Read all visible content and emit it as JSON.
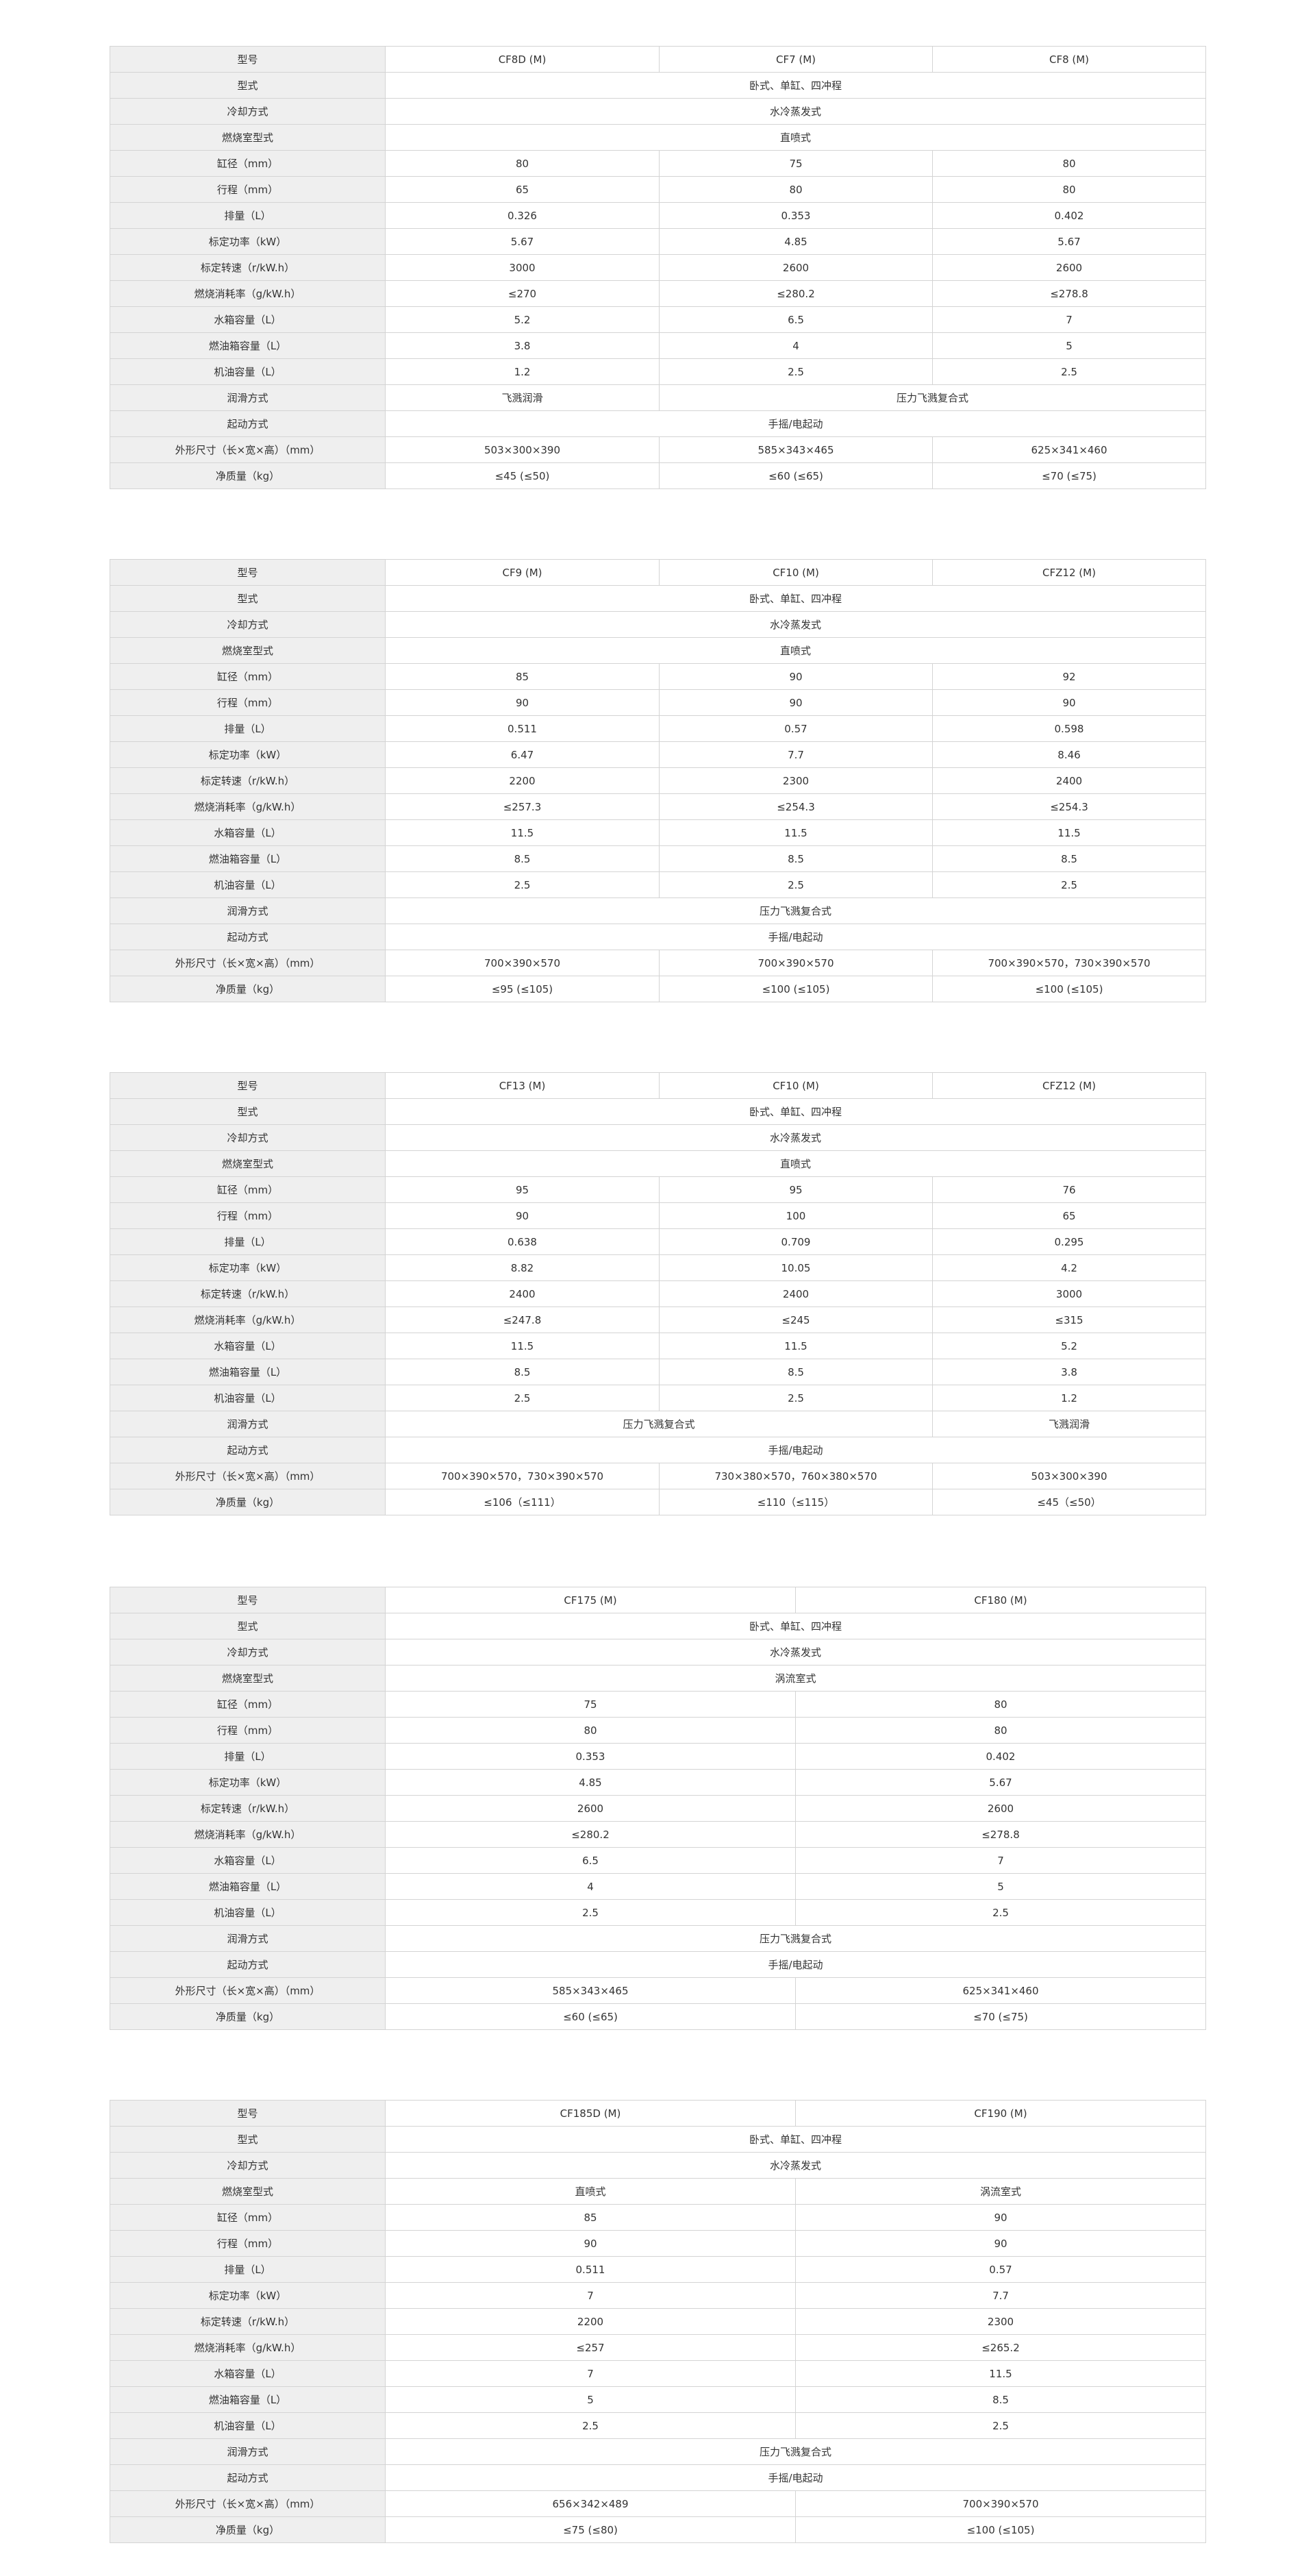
{
  "tables": [
    {
      "columns": 3,
      "rows": [
        {
          "label": "型号",
          "cells": [
            [
              "CF8D (M)",
              1
            ],
            [
              "CF7 (M)",
              1
            ],
            [
              "CF8 (M)",
              1
            ]
          ]
        },
        {
          "label": "型式",
          "cells": [
            [
              "卧式、单缸、四冲程",
              3
            ]
          ]
        },
        {
          "label": "冷却方式",
          "cells": [
            [
              "水冷蒸发式",
              3
            ]
          ]
        },
        {
          "label": "燃烧室型式",
          "cells": [
            [
              "直喷式",
              3
            ]
          ]
        },
        {
          "label": "缸径（mm）",
          "cells": [
            [
              "80",
              1
            ],
            [
              "75",
              1
            ],
            [
              "80",
              1
            ]
          ]
        },
        {
          "label": "行程（mm）",
          "cells": [
            [
              "65",
              1
            ],
            [
              "80",
              1
            ],
            [
              "80",
              1
            ]
          ]
        },
        {
          "label": "排量（L）",
          "cells": [
            [
              "0.326",
              1
            ],
            [
              "0.353",
              1
            ],
            [
              "0.402",
              1
            ]
          ]
        },
        {
          "label": "标定功率（kW）",
          "cells": [
            [
              "5.67",
              1
            ],
            [
              "4.85",
              1
            ],
            [
              "5.67",
              1
            ]
          ]
        },
        {
          "label": "标定转速（r/kW.h）",
          "cells": [
            [
              "3000",
              1
            ],
            [
              "2600",
              1
            ],
            [
              "2600",
              1
            ]
          ]
        },
        {
          "label": "燃烧消耗率（g/kW.h）",
          "cells": [
            [
              "≤270",
              1
            ],
            [
              "≤280.2",
              1
            ],
            [
              "≤278.8",
              1
            ]
          ]
        },
        {
          "label": "水箱容量（L）",
          "cells": [
            [
              "5.2",
              1
            ],
            [
              "6.5",
              1
            ],
            [
              "7",
              1
            ]
          ]
        },
        {
          "label": "燃油箱容量（L）",
          "cells": [
            [
              "3.8",
              1
            ],
            [
              "4",
              1
            ],
            [
              "5",
              1
            ]
          ]
        },
        {
          "label": "机油容量（L）",
          "cells": [
            [
              "1.2",
              1
            ],
            [
              "2.5",
              1
            ],
            [
              "2.5",
              1
            ]
          ]
        },
        {
          "label": "润滑方式",
          "cells": [
            [
              "飞溅润滑",
              1
            ],
            [
              "压力飞溅复合式",
              2
            ]
          ]
        },
        {
          "label": "起动方式",
          "cells": [
            [
              "手摇/电起动",
              3
            ]
          ]
        },
        {
          "label": "外形尺寸（长×宽×高）（mm）",
          "cells": [
            [
              "503×300×390",
              1
            ],
            [
              "585×343×465",
              1
            ],
            [
              "625×341×460",
              1
            ]
          ]
        },
        {
          "label": "净质量（kg）",
          "cells": [
            [
              "≤45 (≤50)",
              1
            ],
            [
              "≤60 (≤65)",
              1
            ],
            [
              "≤70 (≤75)",
              1
            ]
          ]
        }
      ]
    },
    {
      "columns": 3,
      "rows": [
        {
          "label": "型号",
          "cells": [
            [
              "CF9 (M)",
              1
            ],
            [
              "CF10 (M)",
              1
            ],
            [
              "CFZ12 (M)",
              1
            ]
          ]
        },
        {
          "label": "型式",
          "cells": [
            [
              "卧式、单缸、四冲程",
              3
            ]
          ]
        },
        {
          "label": "冷却方式",
          "cells": [
            [
              "水冷蒸发式",
              3
            ]
          ]
        },
        {
          "label": "燃烧室型式",
          "cells": [
            [
              "直喷式",
              3
            ]
          ]
        },
        {
          "label": "缸径（mm）",
          "cells": [
            [
              "85",
              1
            ],
            [
              "90",
              1
            ],
            [
              "92",
              1
            ]
          ]
        },
        {
          "label": "行程（mm）",
          "cells": [
            [
              "90",
              1
            ],
            [
              "90",
              1
            ],
            [
              "90",
              1
            ]
          ]
        },
        {
          "label": "排量（L）",
          "cells": [
            [
              "0.511",
              1
            ],
            [
              "0.57",
              1
            ],
            [
              "0.598",
              1
            ]
          ]
        },
        {
          "label": "标定功率（kW）",
          "cells": [
            [
              "6.47",
              1
            ],
            [
              "7.7",
              1
            ],
            [
              "8.46",
              1
            ]
          ]
        },
        {
          "label": "标定转速（r/kW.h）",
          "cells": [
            [
              "2200",
              1
            ],
            [
              "2300",
              1
            ],
            [
              "2400",
              1
            ]
          ]
        },
        {
          "label": "燃烧消耗率（g/kW.h）",
          "cells": [
            [
              "≤257.3",
              1
            ],
            [
              "≤254.3",
              1
            ],
            [
              "≤254.3",
              1
            ]
          ]
        },
        {
          "label": "水箱容量（L）",
          "cells": [
            [
              "11.5",
              1
            ],
            [
              "11.5",
              1
            ],
            [
              "11.5",
              1
            ]
          ]
        },
        {
          "label": "燃油箱容量（L）",
          "cells": [
            [
              "8.5",
              1
            ],
            [
              "8.5",
              1
            ],
            [
              "8.5",
              1
            ]
          ]
        },
        {
          "label": "机油容量（L）",
          "cells": [
            [
              "2.5",
              1
            ],
            [
              "2.5",
              1
            ],
            [
              "2.5",
              1
            ]
          ]
        },
        {
          "label": "润滑方式",
          "cells": [
            [
              "压力飞溅复合式",
              3
            ]
          ]
        },
        {
          "label": "起动方式",
          "cells": [
            [
              "手摇/电起动",
              3
            ]
          ]
        },
        {
          "label": "外形尺寸（长×宽×高）（mm）",
          "cells": [
            [
              "700×390×570",
              1
            ],
            [
              "700×390×570",
              1
            ],
            [
              "700×390×570，730×390×570",
              1
            ]
          ]
        },
        {
          "label": "净质量（kg）",
          "cells": [
            [
              "≤95 (≤105)",
              1
            ],
            [
              "≤100 (≤105)",
              1
            ],
            [
              "≤100 (≤105)",
              1
            ]
          ]
        }
      ]
    },
    {
      "columns": 3,
      "rows": [
        {
          "label": "型号",
          "cells": [
            [
              "CF13 (M)",
              1
            ],
            [
              "CF10 (M)",
              1
            ],
            [
              "CFZ12 (M)",
              1
            ]
          ]
        },
        {
          "label": "型式",
          "cells": [
            [
              "卧式、单缸、四冲程",
              3
            ]
          ]
        },
        {
          "label": "冷却方式",
          "cells": [
            [
              "水冷蒸发式",
              3
            ]
          ]
        },
        {
          "label": "燃烧室型式",
          "cells": [
            [
              "直喷式",
              3
            ]
          ]
        },
        {
          "label": "缸径（mm）",
          "cells": [
            [
              "95",
              1
            ],
            [
              "95",
              1
            ],
            [
              "76",
              1
            ]
          ]
        },
        {
          "label": "行程（mm）",
          "cells": [
            [
              "90",
              1
            ],
            [
              "100",
              1
            ],
            [
              "65",
              1
            ]
          ]
        },
        {
          "label": "排量（L）",
          "cells": [
            [
              "0.638",
              1
            ],
            [
              "0.709",
              1
            ],
            [
              "0.295",
              1
            ]
          ]
        },
        {
          "label": "标定功率（kW）",
          "cells": [
            [
              "8.82",
              1
            ],
            [
              "10.05",
              1
            ],
            [
              "4.2",
              1
            ]
          ]
        },
        {
          "label": "标定转速（r/kW.h）",
          "cells": [
            [
              "2400",
              1
            ],
            [
              "2400",
              1
            ],
            [
              "3000",
              1
            ]
          ]
        },
        {
          "label": "燃烧消耗率（g/kW.h）",
          "cells": [
            [
              "≤247.8",
              1
            ],
            [
              "≤245",
              1
            ],
            [
              "≤315",
              1
            ]
          ]
        },
        {
          "label": "水箱容量（L）",
          "cells": [
            [
              "11.5",
              1
            ],
            [
              "11.5",
              1
            ],
            [
              "5.2",
              1
            ]
          ]
        },
        {
          "label": "燃油箱容量（L）",
          "cells": [
            [
              "8.5",
              1
            ],
            [
              "8.5",
              1
            ],
            [
              "3.8",
              1
            ]
          ]
        },
        {
          "label": "机油容量（L）",
          "cells": [
            [
              "2.5",
              1
            ],
            [
              "2.5",
              1
            ],
            [
              "1.2",
              1
            ]
          ]
        },
        {
          "label": "润滑方式",
          "cells": [
            [
              "压力飞溅复合式",
              2
            ],
            [
              "飞溅润滑",
              1
            ]
          ]
        },
        {
          "label": "起动方式",
          "cells": [
            [
              "手摇/电起动",
              3
            ]
          ]
        },
        {
          "label": "外形尺寸（长×宽×高）（mm）",
          "cells": [
            [
              "700×390×570，730×390×570",
              1
            ],
            [
              "730×380×570，760×380×570",
              1
            ],
            [
              "503×300×390",
              1
            ]
          ]
        },
        {
          "label": "净质量（kg）",
          "cells": [
            [
              "≤106（≤111）",
              1
            ],
            [
              "≤110（≤115）",
              1
            ],
            [
              "≤45（≤50）",
              1
            ]
          ]
        }
      ]
    },
    {
      "columns": 2,
      "rows": [
        {
          "label": "型号",
          "cells": [
            [
              "CF175 (M)",
              1
            ],
            [
              "CF180 (M)",
              1
            ]
          ]
        },
        {
          "label": "型式",
          "cells": [
            [
              "卧式、单缸、四冲程",
              2
            ]
          ]
        },
        {
          "label": "冷却方式",
          "cells": [
            [
              "水冷蒸发式",
              2
            ]
          ]
        },
        {
          "label": "燃烧室型式",
          "cells": [
            [
              "涡流室式",
              2
            ]
          ]
        },
        {
          "label": "缸径（mm）",
          "cells": [
            [
              "75",
              1
            ],
            [
              "80",
              1
            ]
          ]
        },
        {
          "label": "行程（mm）",
          "cells": [
            [
              "80",
              1
            ],
            [
              "80",
              1
            ]
          ]
        },
        {
          "label": "排量（L）",
          "cells": [
            [
              "0.353",
              1
            ],
            [
              "0.402",
              1
            ]
          ]
        },
        {
          "label": "标定功率（kW）",
          "cells": [
            [
              "4.85",
              1
            ],
            [
              "5.67",
              1
            ]
          ]
        },
        {
          "label": "标定转速（r/kW.h）",
          "cells": [
            [
              "2600",
              1
            ],
            [
              "2600",
              1
            ]
          ]
        },
        {
          "label": "燃烧消耗率（g/kW.h）",
          "cells": [
            [
              "≤280.2",
              1
            ],
            [
              "≤278.8",
              1
            ]
          ]
        },
        {
          "label": "水箱容量（L）",
          "cells": [
            [
              "6.5",
              1
            ],
            [
              "7",
              1
            ]
          ]
        },
        {
          "label": "燃油箱容量（L）",
          "cells": [
            [
              "4",
              1
            ],
            [
              "5",
              1
            ]
          ]
        },
        {
          "label": "机油容量（L）",
          "cells": [
            [
              "2.5",
              1
            ],
            [
              "2.5",
              1
            ]
          ]
        },
        {
          "label": "润滑方式",
          "cells": [
            [
              "压力飞溅复合式",
              2
            ]
          ]
        },
        {
          "label": "起动方式",
          "cells": [
            [
              "手摇/电起动",
              2
            ]
          ]
        },
        {
          "label": "外形尺寸（长×宽×高）（mm）",
          "cells": [
            [
              "585×343×465",
              1
            ],
            [
              "625×341×460",
              1
            ]
          ]
        },
        {
          "label": "净质量（kg）",
          "cells": [
            [
              "≤60 (≤65)",
              1
            ],
            [
              "≤70 (≤75)",
              1
            ]
          ]
        }
      ]
    },
    {
      "columns": 2,
      "rows": [
        {
          "label": "型号",
          "cells": [
            [
              "CF185D (M)",
              1
            ],
            [
              "CF190 (M)",
              1
            ]
          ]
        },
        {
          "label": "型式",
          "cells": [
            [
              "卧式、单缸、四冲程",
              2
            ]
          ]
        },
        {
          "label": "冷却方式",
          "cells": [
            [
              "水冷蒸发式",
              2
            ]
          ]
        },
        {
          "label": "燃烧室型式",
          "cells": [
            [
              "直喷式",
              1
            ],
            [
              "涡流室式",
              1
            ]
          ]
        },
        {
          "label": "缸径（mm）",
          "cells": [
            [
              "85",
              1
            ],
            [
              "90",
              1
            ]
          ]
        },
        {
          "label": "行程（mm）",
          "cells": [
            [
              "90",
              1
            ],
            [
              "90",
              1
            ]
          ]
        },
        {
          "label": "排量（L）",
          "cells": [
            [
              "0.511",
              1
            ],
            [
              "0.57",
              1
            ]
          ]
        },
        {
          "label": "标定功率（kW）",
          "cells": [
            [
              "7",
              1
            ],
            [
              "7.7",
              1
            ]
          ]
        },
        {
          "label": "标定转速（r/kW.h）",
          "cells": [
            [
              "2200",
              1
            ],
            [
              "2300",
              1
            ]
          ]
        },
        {
          "label": "燃烧消耗率（g/kW.h）",
          "cells": [
            [
              "≤257",
              1
            ],
            [
              "≤265.2",
              1
            ]
          ]
        },
        {
          "label": "水箱容量（L）",
          "cells": [
            [
              "7",
              1
            ],
            [
              "11.5",
              1
            ]
          ]
        },
        {
          "label": "燃油箱容量（L）",
          "cells": [
            [
              "5",
              1
            ],
            [
              "8.5",
              1
            ]
          ]
        },
        {
          "label": "机油容量（L）",
          "cells": [
            [
              "2.5",
              1
            ],
            [
              "2.5",
              1
            ]
          ]
        },
        {
          "label": "润滑方式",
          "cells": [
            [
              "压力飞溅复合式",
              2
            ]
          ]
        },
        {
          "label": "起动方式",
          "cells": [
            [
              "手摇/电起动",
              2
            ]
          ]
        },
        {
          "label": "外形尺寸（长×宽×高）（mm）",
          "cells": [
            [
              "656×342×489",
              1
            ],
            [
              "700×390×570",
              1
            ]
          ]
        },
        {
          "label": "净质量（kg）",
          "cells": [
            [
              "≤75 (≤80)",
              1
            ],
            [
              "≤100 (≤105)",
              1
            ]
          ]
        }
      ]
    }
  ]
}
